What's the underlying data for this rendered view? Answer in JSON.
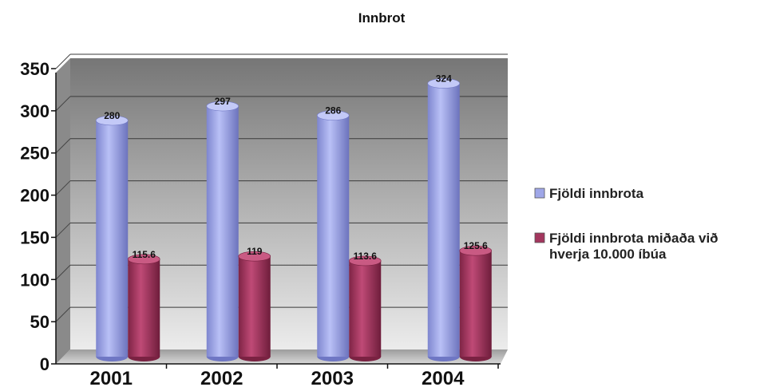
{
  "chart_data": {
    "type": "bar",
    "title": "Innbrot",
    "categories": [
      "2001",
      "2002",
      "2003",
      "2004"
    ],
    "series": [
      {
        "name": "Fjöldi innbrota",
        "values": [
          280,
          297,
          286,
          324
        ],
        "labels": [
          "280",
          "297",
          "286",
          "324"
        ],
        "color": "#9fa7e8"
      },
      {
        "name": "Fjöldi innbrota miðaða við hverja 10.000 íbúa",
        "name_lines": [
          "Fjöldi innbrota miðaða við",
          "hverja 10.000 íbúa"
        ],
        "values": [
          115.6,
          119,
          113.6,
          125.6
        ],
        "labels": [
          "115.6",
          "119",
          "113.6",
          "125.6"
        ],
        "color": "#a3365e"
      }
    ],
    "ylim": [
      0,
      350
    ],
    "yticks": [
      0,
      50,
      100,
      150,
      200,
      250,
      300,
      350
    ],
    "grid": true,
    "legend": "right",
    "xlabel": "",
    "ylabel": ""
  }
}
